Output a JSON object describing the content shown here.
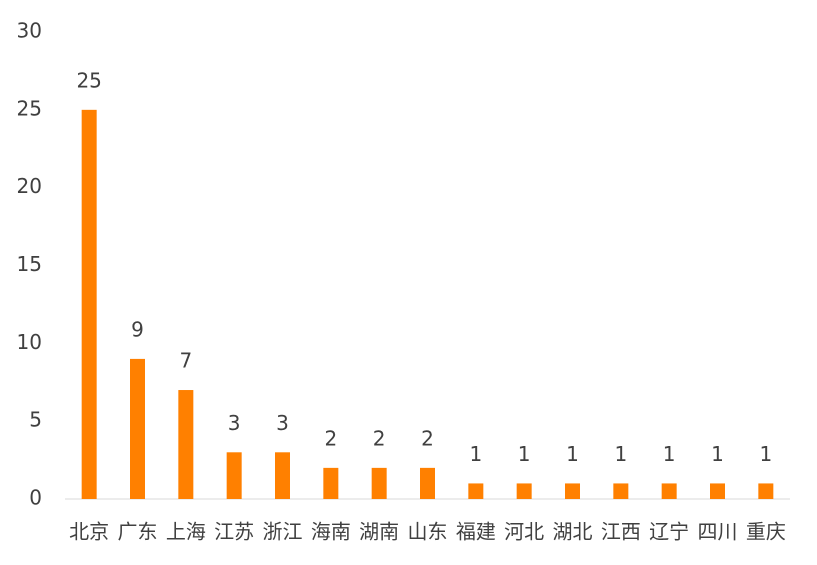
{
  "chart_data": {
    "type": "bar",
    "categories": [
      "北京",
      "广东",
      "上海",
      "江苏",
      "浙江",
      "海南",
      "湖南",
      "山东",
      "福建",
      "河北",
      "湖北",
      "江西",
      "辽宁",
      "四川",
      "重庆"
    ],
    "values": [
      25,
      9,
      7,
      3,
      3,
      2,
      2,
      2,
      1,
      1,
      1,
      1,
      1,
      1,
      1
    ],
    "color": "#ff8000",
    "ylim": [
      0,
      30
    ],
    "yticks": [
      0,
      5,
      10,
      15,
      20,
      25,
      30
    ],
    "grid": false
  }
}
